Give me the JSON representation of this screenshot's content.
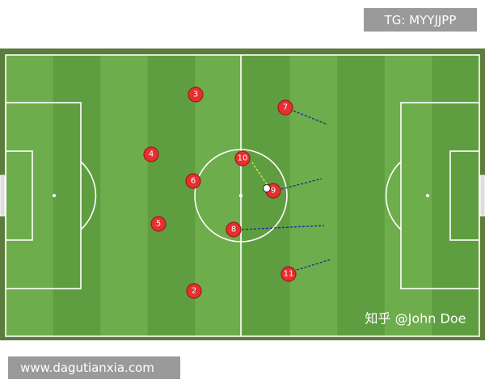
{
  "header": {
    "tag": "TG: MYYJJPP"
  },
  "players": [
    {
      "label": "3"
    },
    {
      "label": "7"
    },
    {
      "label": "4"
    },
    {
      "label": "10"
    },
    {
      "label": "6"
    },
    {
      "label": "9"
    },
    {
      "label": "5"
    },
    {
      "label": "8"
    },
    {
      "label": "11"
    },
    {
      "label": "2"
    }
  ],
  "watermark": "知乎 @John Doe",
  "footer": {
    "url": "www.dagutianxia.com"
  }
}
